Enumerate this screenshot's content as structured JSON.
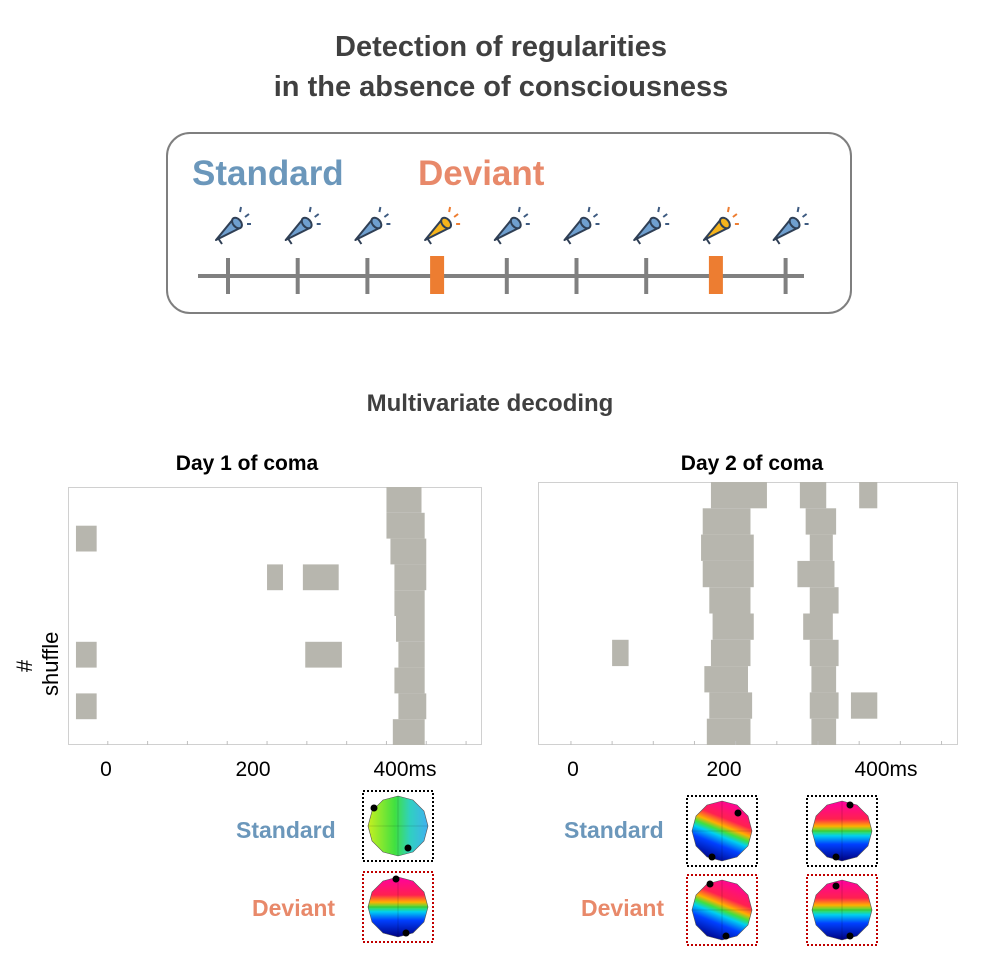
{
  "title": {
    "line1": "Detection of regularities",
    "line2": "in the absence of consciousness"
  },
  "paradigm": {
    "standard_label": "Standard",
    "deviant_label": "Deviant",
    "standard_color": "#6b97bb",
    "deviant_color": "#e8896a",
    "sequence": [
      "standard",
      "standard",
      "standard",
      "deviant",
      "standard",
      "standard",
      "standard",
      "deviant",
      "standard"
    ]
  },
  "section_title": "Multivariate decoding",
  "y_label": "# shuffle",
  "chart_data": [
    {
      "type": "heatmap",
      "title": "Day 1 of coma",
      "xlabel": "",
      "ylabel": "# shuffle",
      "x_ticks": [
        "0",
        "200",
        "400ms"
      ],
      "x_tick_values": [
        0,
        200,
        400
      ],
      "xlim": [
        -50,
        470
      ],
      "ylim": [
        0,
        20
      ],
      "significant_blocks": [
        {
          "x0": -40,
          "x1": -14,
          "y0": 15,
          "y1": 17
        },
        {
          "x0": 350,
          "x1": 394,
          "y0": 18,
          "y1": 20
        },
        {
          "x0": 350,
          "x1": 398,
          "y0": 16,
          "y1": 18
        },
        {
          "x0": 355,
          "x1": 400,
          "y0": 14,
          "y1": 16
        },
        {
          "x0": 360,
          "x1": 400,
          "y0": 12,
          "y1": 14
        },
        {
          "x0": 200,
          "x1": 220,
          "y0": 12,
          "y1": 14
        },
        {
          "x0": 245,
          "x1": 290,
          "y0": 12,
          "y1": 14
        },
        {
          "x0": 360,
          "x1": 398,
          "y0": 10,
          "y1": 12
        },
        {
          "x0": 362,
          "x1": 398,
          "y0": 8,
          "y1": 10
        },
        {
          "x0": 365,
          "x1": 398,
          "y0": 6,
          "y1": 8
        },
        {
          "x0": -40,
          "x1": -14,
          "y0": 6,
          "y1": 8
        },
        {
          "x0": 248,
          "x1": 294,
          "y0": 6,
          "y1": 8
        },
        {
          "x0": 360,
          "x1": 398,
          "y0": 4,
          "y1": 6
        },
        {
          "x0": 365,
          "x1": 400,
          "y0": 2,
          "y1": 4
        },
        {
          "x0": -40,
          "x1": -14,
          "y0": 2,
          "y1": 4
        },
        {
          "x0": 358,
          "x1": 398,
          "y0": 0,
          "y1": 2
        }
      ],
      "block_color": "#b7b6ae"
    },
    {
      "type": "heatmap",
      "title": "Day 2 of coma",
      "xlabel": "",
      "ylabel": "# shuffle",
      "x_ticks": [
        "0",
        "200",
        "400ms"
      ],
      "x_tick_values": [
        0,
        200,
        400
      ],
      "xlim": [
        -40,
        470
      ],
      "ylim": [
        0,
        20
      ],
      "significant_blocks": [
        {
          "x0": 170,
          "x1": 238,
          "y0": 18,
          "y1": 20
        },
        {
          "x0": 278,
          "x1": 310,
          "y0": 18,
          "y1": 20
        },
        {
          "x0": 350,
          "x1": 372,
          "y0": 18,
          "y1": 20
        },
        {
          "x0": 160,
          "x1": 218,
          "y0": 16,
          "y1": 18
        },
        {
          "x0": 285,
          "x1": 322,
          "y0": 16,
          "y1": 18
        },
        {
          "x0": 158,
          "x1": 222,
          "y0": 14,
          "y1": 16
        },
        {
          "x0": 290,
          "x1": 318,
          "y0": 14,
          "y1": 16
        },
        {
          "x0": 160,
          "x1": 222,
          "y0": 12,
          "y1": 14
        },
        {
          "x0": 275,
          "x1": 320,
          "y0": 12,
          "y1": 14
        },
        {
          "x0": 168,
          "x1": 218,
          "y0": 10,
          "y1": 12
        },
        {
          "x0": 290,
          "x1": 325,
          "y0": 10,
          "y1": 12
        },
        {
          "x0": 172,
          "x1": 222,
          "y0": 8,
          "y1": 10
        },
        {
          "x0": 282,
          "x1": 318,
          "y0": 8,
          "y1": 10
        },
        {
          "x0": 170,
          "x1": 218,
          "y0": 6,
          "y1": 8
        },
        {
          "x0": 290,
          "x1": 325,
          "y0": 6,
          "y1": 8
        },
        {
          "x0": 50,
          "x1": 70,
          "y0": 6,
          "y1": 8
        },
        {
          "x0": 162,
          "x1": 215,
          "y0": 4,
          "y1": 6
        },
        {
          "x0": 292,
          "x1": 322,
          "y0": 4,
          "y1": 6
        },
        {
          "x0": 168,
          "x1": 220,
          "y0": 2,
          "y1": 4
        },
        {
          "x0": 290,
          "x1": 325,
          "y0": 2,
          "y1": 4
        },
        {
          "x0": 340,
          "x1": 372,
          "y0": 2,
          "y1": 4
        },
        {
          "x0": 165,
          "x1": 218,
          "y0": 0,
          "y1": 2
        },
        {
          "x0": 292,
          "x1": 322,
          "y0": 0,
          "y1": 2
        }
      ],
      "block_color": "#b7b6ae"
    }
  ],
  "topographies": {
    "standard_label": "Standard",
    "deviant_label": "Deviant",
    "standard_frame_color": "#000000",
    "deviant_frame_color": "#c00000"
  }
}
